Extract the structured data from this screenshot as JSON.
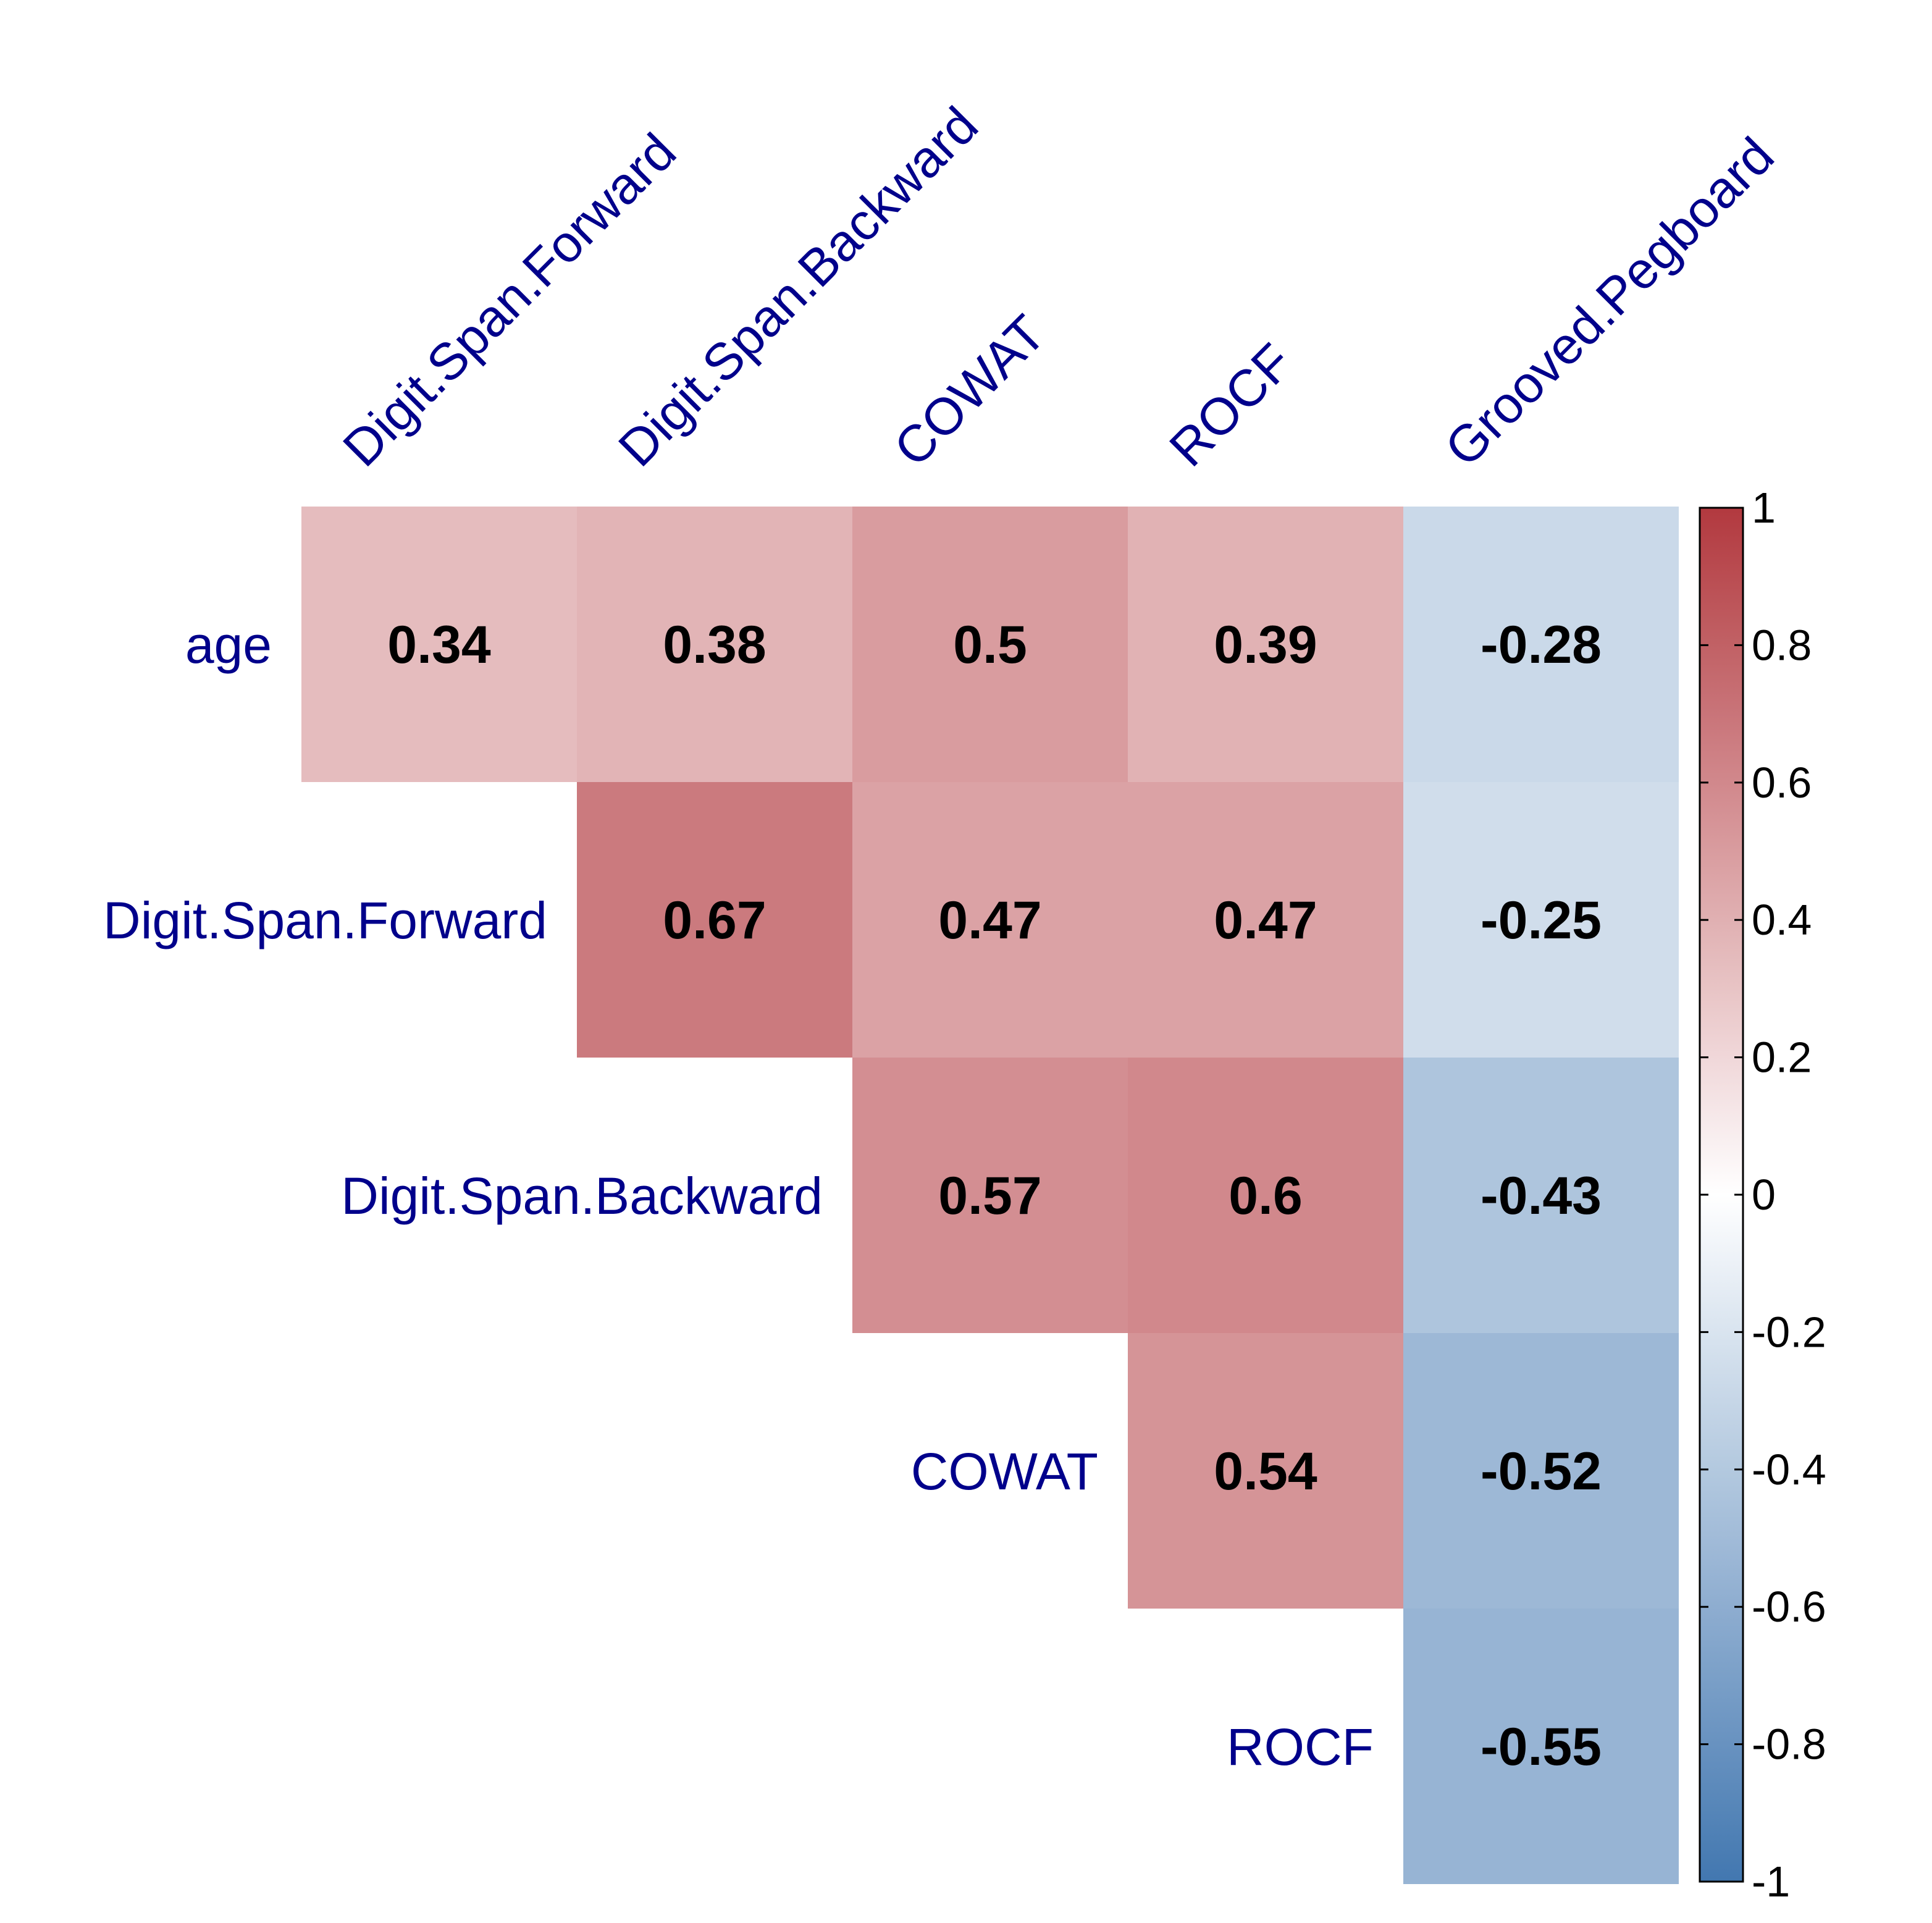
{
  "chart_data": {
    "type": "heatmap",
    "title": "",
    "columns": [
      "Digit.Span.Forward",
      "Digit.Span.Backward",
      "COWAT",
      "ROCF",
      "Grooved.Pegboard"
    ],
    "rows": [
      "age",
      "Digit.Span.Forward",
      "Digit.Span.Backward",
      "COWAT",
      "ROCF"
    ],
    "cells": [
      {
        "row": "age",
        "col": "Digit.Span.Forward",
        "value": 0.34,
        "label": "0.34"
      },
      {
        "row": "age",
        "col": "Digit.Span.Backward",
        "value": 0.38,
        "label": "0.38"
      },
      {
        "row": "age",
        "col": "COWAT",
        "value": 0.5,
        "label": "0.5"
      },
      {
        "row": "age",
        "col": "ROCF",
        "value": 0.39,
        "label": "0.39"
      },
      {
        "row": "age",
        "col": "Grooved.Pegboard",
        "value": -0.28,
        "label": "-0.28"
      },
      {
        "row": "Digit.Span.Forward",
        "col": "Digit.Span.Backward",
        "value": 0.67,
        "label": "0.67"
      },
      {
        "row": "Digit.Span.Forward",
        "col": "COWAT",
        "value": 0.47,
        "label": "0.47"
      },
      {
        "row": "Digit.Span.Forward",
        "col": "ROCF",
        "value": 0.47,
        "label": "0.47"
      },
      {
        "row": "Digit.Span.Forward",
        "col": "Grooved.Pegboard",
        "value": -0.25,
        "label": "-0.25"
      },
      {
        "row": "Digit.Span.Backward",
        "col": "COWAT",
        "value": 0.57,
        "label": "0.57"
      },
      {
        "row": "Digit.Span.Backward",
        "col": "ROCF",
        "value": 0.6,
        "label": "0.6"
      },
      {
        "row": "Digit.Span.Backward",
        "col": "Grooved.Pegboard",
        "value": -0.43,
        "label": "-0.43"
      },
      {
        "row": "COWAT",
        "col": "ROCF",
        "value": 0.54,
        "label": "0.54"
      },
      {
        "row": "COWAT",
        "col": "Grooved.Pegboard",
        "value": -0.52,
        "label": "-0.52"
      },
      {
        "row": "ROCF",
        "col": "Grooved.Pegboard",
        "value": -0.55,
        "label": "-0.55"
      }
    ],
    "legend": {
      "range": [
        -1,
        1
      ],
      "ticks": [
        "1",
        "0.8",
        "0.6",
        "0.4",
        "0.2",
        "0",
        "-0.2",
        "-0.4",
        "-0.6",
        "-0.8",
        "-1"
      ],
      "placement": "right"
    },
    "colors": {
      "label": "#00008B",
      "value_text": "#000000",
      "neg_end": "#4277b0",
      "mid": "#ffffff",
      "pos_end": "#b2393f"
    }
  }
}
